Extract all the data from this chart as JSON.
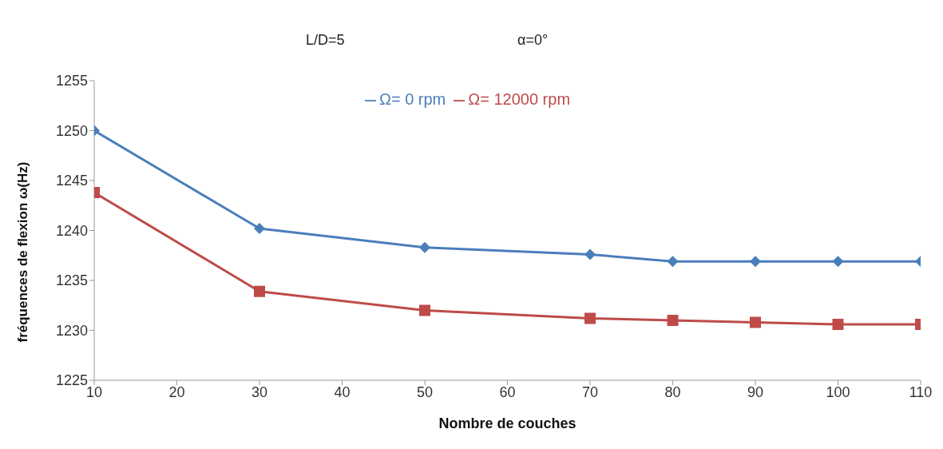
{
  "chart_data": {
    "type": "line",
    "xlabel": "Nombre de couches",
    "ylabel": "fréquences de flexion ω(Hz)",
    "annotations": [
      "L/D=5",
      "α=0°"
    ],
    "x": [
      10,
      30,
      50,
      70,
      80,
      90,
      100,
      110
    ],
    "series": [
      {
        "name": "Ω= 0 rpm",
        "color": "#4a7ebb",
        "marker": "diamond",
        "values": [
          1250,
          1240.2,
          1238.3,
          1237.6,
          1236.9,
          1236.9,
          1236.9,
          1236.9
        ]
      },
      {
        "name": "Ω= 12000 rpm",
        "color": "#be4b48",
        "marker": "square",
        "values": [
          1243.8,
          1233.9,
          1232,
          1231.2,
          1231,
          1230.8,
          1230.6,
          1230.6
        ]
      }
    ],
    "xlim": [
      10,
      110
    ],
    "xticks": [
      10,
      20,
      30,
      40,
      50,
      60,
      70,
      80,
      90,
      100,
      110
    ],
    "ylim": [
      1225,
      1255
    ],
    "yticks": [
      1225,
      1230,
      1235,
      1240,
      1245,
      1250,
      1255
    ],
    "grid": false,
    "legend": "top",
    "line_style": "solid"
  }
}
